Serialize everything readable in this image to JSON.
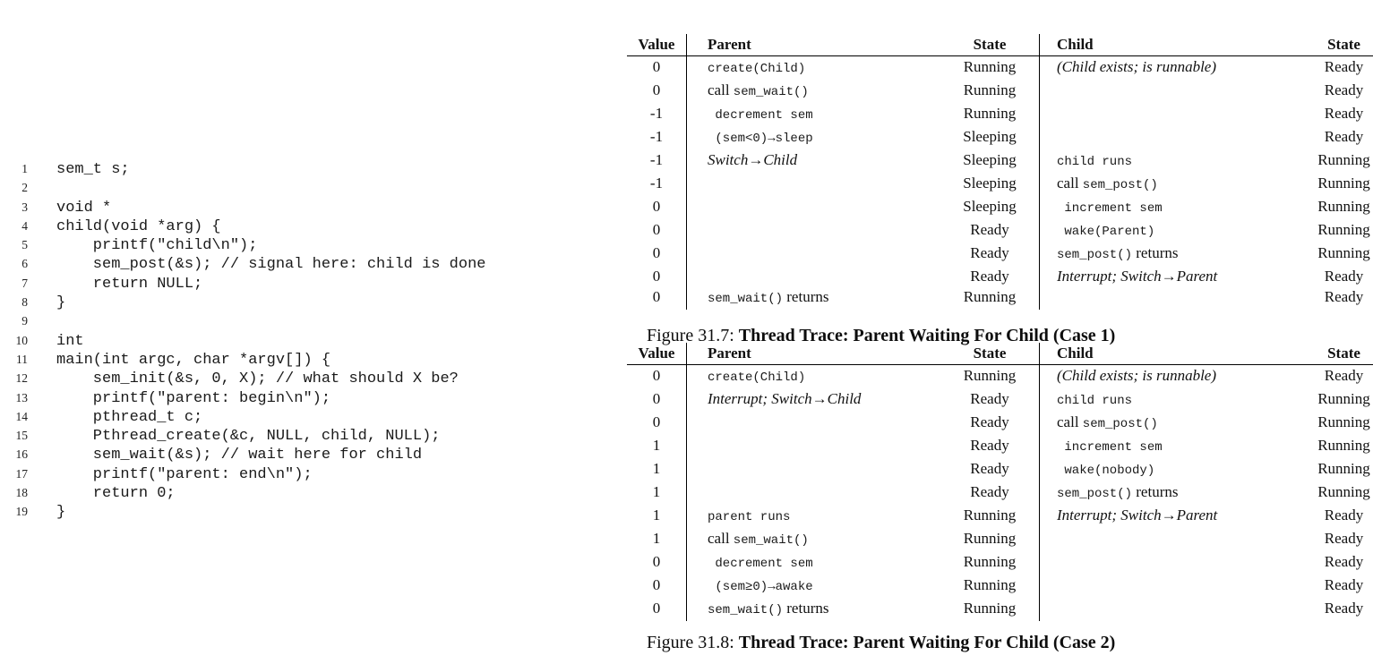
{
  "colors": {
    "background": "#ffffff",
    "text": "#111111",
    "table_rule": "#000000"
  },
  "code_listing": {
    "lines": [
      {
        "n": "1",
        "code": "sem_t s;"
      },
      {
        "n": "2",
        "code": ""
      },
      {
        "n": "3",
        "code": "void *"
      },
      {
        "n": "4",
        "code": "child(void *arg) {"
      },
      {
        "n": "5",
        "code": "    printf(\"child\\n\");"
      },
      {
        "n": "6",
        "code": "    sem_post(&s); // signal here: child is done"
      },
      {
        "n": "7",
        "code": "    return NULL;"
      },
      {
        "n": "8",
        "code": "}"
      },
      {
        "n": "9",
        "code": ""
      },
      {
        "n": "10",
        "code": "int"
      },
      {
        "n": "11",
        "code": "main(int argc, char *argv[]) {"
      },
      {
        "n": "12",
        "code": "    sem_init(&s, 0, X); // what should X be?"
      },
      {
        "n": "13",
        "code": "    printf(\"parent: begin\\n\");"
      },
      {
        "n": "14",
        "code": "    pthread_t c;"
      },
      {
        "n": "15",
        "code": "    Pthread_create(&c, NULL, child, NULL);"
      },
      {
        "n": "16",
        "code": "    sem_wait(&s); // wait here for child"
      },
      {
        "n": "17",
        "code": "    printf(\"parent: end\\n\");"
      },
      {
        "n": "18",
        "code": "    return 0;"
      },
      {
        "n": "19",
        "code": "}"
      }
    ]
  },
  "figures": [
    {
      "id": "figure-31-7",
      "caption": {
        "prefix": "Figure 31.7: ",
        "title": "Thread Trace: Parent Waiting For Child (Case 1)"
      },
      "table": {
        "columns": [
          "Value",
          "Parent",
          "State",
          "Child",
          "State"
        ],
        "rows": [
          [
            "0",
            "`create(Child)`",
            "Running",
            "*(Child exists; is runnable)*",
            "Ready"
          ],
          [
            "0",
            "call `sem_wait()`",
            "Running",
            "",
            "Ready"
          ],
          [
            "-1",
            "` decrement sem`",
            "Running",
            "",
            "Ready"
          ],
          [
            "-1",
            "` (sem<0)→sleep`",
            "Sleeping",
            "",
            "Ready"
          ],
          [
            "-1",
            "*Switch→Child*",
            "Sleeping",
            "`child runs`",
            "Running"
          ],
          [
            "-1",
            "",
            "Sleeping",
            "call `sem_post()`",
            "Running"
          ],
          [
            "0",
            "",
            "Sleeping",
            "` increment sem`",
            "Running"
          ],
          [
            "0",
            "",
            "Ready",
            "` wake(Parent)`",
            "Running"
          ],
          [
            "0",
            "",
            "Ready",
            "`sem_post()` returns",
            "Running"
          ],
          [
            "0",
            "",
            "Ready",
            "*Interrupt; Switch→Parent*",
            "Ready"
          ],
          [
            "0",
            "`sem_wait()` returns",
            "Running",
            "",
            "Ready"
          ]
        ]
      }
    },
    {
      "id": "figure-31-8",
      "caption": {
        "prefix": "Figure 31.8: ",
        "title": "Thread Trace: Parent Waiting For Child (Case 2)"
      },
      "table": {
        "columns": [
          "Value",
          "Parent",
          "State",
          "Child",
          "State"
        ],
        "rows": [
          [
            "0",
            "`create(Child)`",
            "Running",
            "*(Child exists; is runnable)*",
            "Ready"
          ],
          [
            "0",
            "*Interrupt; Switch→Child*",
            "Ready",
            "`child runs`",
            "Running"
          ],
          [
            "0",
            "",
            "Ready",
            "call `sem_post()`",
            "Running"
          ],
          [
            "1",
            "",
            "Ready",
            "` increment sem`",
            "Running"
          ],
          [
            "1",
            "",
            "Ready",
            "` wake(nobody)`",
            "Running"
          ],
          [
            "1",
            "",
            "Ready",
            "`sem_post()` returns",
            "Running"
          ],
          [
            "1",
            "`parent runs`",
            "Running",
            "*Interrupt; Switch→Parent*",
            "Ready"
          ],
          [
            "1",
            "call `sem_wait()`",
            "Running",
            "",
            "Ready"
          ],
          [
            "0",
            "` decrement sem`",
            "Running",
            "",
            "Ready"
          ],
          [
            "0",
            "` (sem≥0)→awake`",
            "Running",
            "",
            "Ready"
          ],
          [
            "0",
            "`sem_wait()` returns",
            "Running",
            "",
            "Ready"
          ]
        ]
      }
    }
  ]
}
